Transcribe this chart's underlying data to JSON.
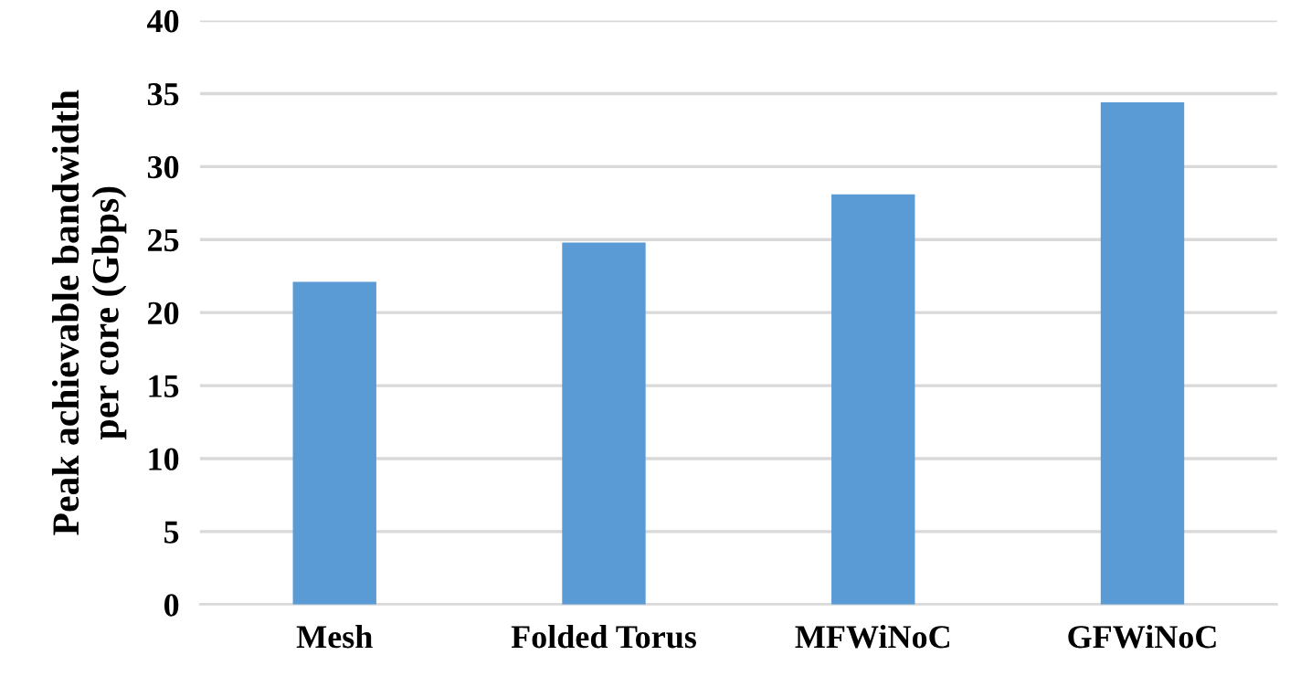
{
  "chart_data": {
    "type": "bar",
    "ylabel": "Peak achievable bandwidth\nper core (Gbps)",
    "categories": [
      "Mesh",
      "Folded Torus",
      "MFWiNoC",
      "GFWiNoC"
    ],
    "values": [
      22.1,
      24.8,
      28.1,
      34.4
    ],
    "color": "#5b9bd5",
    "ylim": [
      0,
      40
    ],
    "yticks": [
      0,
      5,
      10,
      15,
      20,
      25,
      30,
      35,
      40
    ],
    "grid": "y"
  }
}
